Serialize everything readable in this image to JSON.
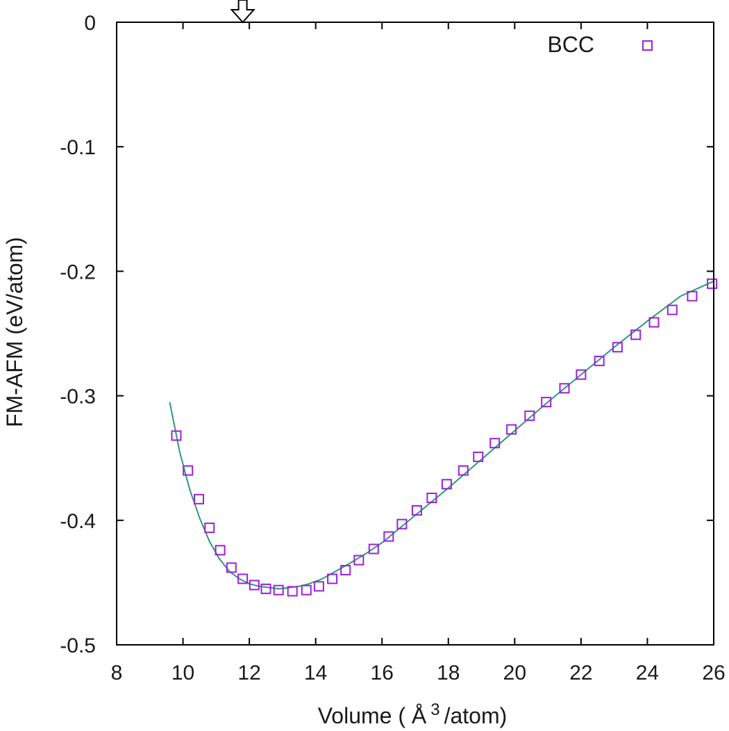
{
  "chart_data": {
    "type": "scatter",
    "title": "",
    "xlabel": {
      "prefix": "Volume ( Å",
      "superscript": "3",
      "suffix": "/atom)"
    },
    "ylabel": "FM-AFM (eV/atom)",
    "xlim": [
      8,
      26
    ],
    "ylim": [
      -0.5,
      0
    ],
    "x_ticks": [
      8,
      10,
      12,
      14,
      16,
      18,
      20,
      22,
      24,
      26
    ],
    "x_tick_labels": [
      "8",
      "10",
      "12",
      "14",
      "16",
      "18",
      "20",
      "22",
      "24",
      "26"
    ],
    "y_ticks": [
      0,
      -0.1,
      -0.2,
      -0.3,
      -0.4,
      -0.5
    ],
    "y_tick_labels": [
      "0",
      "-0.1",
      "-0.2",
      "-0.3",
      "-0.4",
      "-0.5"
    ],
    "grid": false,
    "legend": {
      "position": "top-right"
    },
    "marker_x_arrow": 11.8,
    "series": [
      {
        "name": "BCC",
        "marker": "open-square",
        "color": "#9b1fe0",
        "x": [
          9.8,
          10.15,
          10.48,
          10.8,
          11.12,
          11.46,
          11.8,
          12.15,
          12.5,
          12.88,
          13.3,
          13.72,
          14.1,
          14.5,
          14.9,
          15.3,
          15.75,
          16.2,
          16.6,
          17.05,
          17.5,
          17.95,
          18.45,
          18.9,
          19.4,
          19.9,
          20.45,
          20.95,
          21.5,
          22.0,
          22.55,
          23.1,
          23.65,
          24.2,
          24.75,
          25.35,
          25.95
        ],
        "y": [
          -0.332,
          -0.36,
          -0.383,
          -0.406,
          -0.424,
          -0.438,
          -0.447,
          -0.452,
          -0.455,
          -0.456,
          -0.457,
          -0.456,
          -0.453,
          -0.447,
          -0.44,
          -0.432,
          -0.423,
          -0.413,
          -0.403,
          -0.392,
          -0.382,
          -0.371,
          -0.36,
          -0.349,
          -0.338,
          -0.327,
          -0.316,
          -0.305,
          -0.294,
          -0.283,
          -0.272,
          -0.261,
          -0.251,
          -0.241,
          -0.231,
          -0.22,
          -0.21
        ]
      },
      {
        "name": "",
        "type": "line",
        "color": "#2a9a78",
        "x": [
          9.6,
          9.9,
          10.2,
          10.5,
          10.8,
          11.1,
          11.4,
          11.7,
          12.0,
          12.3,
          12.6,
          12.9,
          13.2,
          13.5,
          13.8,
          14.2,
          14.6,
          15.0,
          15.5,
          16.0,
          17.0,
          18.0,
          19.0,
          20.0,
          21.0,
          22.0,
          23.0,
          24.0,
          25.0,
          26.0
        ],
        "y": [
          -0.305,
          -0.345,
          -0.375,
          -0.398,
          -0.417,
          -0.431,
          -0.441,
          -0.447,
          -0.451,
          -0.453,
          -0.454,
          -0.455,
          -0.454,
          -0.453,
          -0.451,
          -0.447,
          -0.441,
          -0.435,
          -0.427,
          -0.418,
          -0.396,
          -0.374,
          -0.351,
          -0.328,
          -0.305,
          -0.283,
          -0.261,
          -0.24,
          -0.22,
          -0.208
        ]
      }
    ]
  }
}
